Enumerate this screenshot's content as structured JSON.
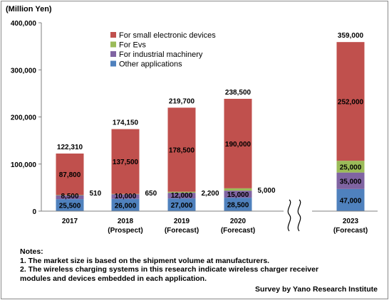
{
  "unit_label": "(Million Yen)",
  "chart_data": {
    "type": "bar",
    "stacked": true,
    "categories": [
      "2017",
      "2018",
      "2019",
      "2020",
      "2023"
    ],
    "category_sublabels": [
      "",
      "(Prospect)",
      "(Forecast)",
      "(Forecast)",
      "(Forecast)"
    ],
    "axis_break_between": [
      "2020",
      "2023"
    ],
    "ylim": [
      0,
      400000
    ],
    "yticks": [
      0,
      100000,
      200000,
      300000,
      400000
    ],
    "ytick_labels": [
      "0",
      "100,000",
      "200,000",
      "300,000",
      "400,000"
    ],
    "legend_position": "top-center",
    "series": [
      {
        "name": "Other applications",
        "color": "#4f81bd",
        "values": [
          25500,
          26000,
          27000,
          28500,
          47000
        ],
        "labels": [
          "25,500",
          "26,000",
          "27,000",
          "28,500",
          "47,000"
        ]
      },
      {
        "name": "For industrial machinery",
        "color": "#8064a2",
        "values": [
          8500,
          10000,
          12000,
          15000,
          35000
        ],
        "labels": [
          "8,500",
          "10,000",
          "12,000",
          "15,000",
          "35,000"
        ]
      },
      {
        "name": "For Evs",
        "color": "#9bbb59",
        "values": [
          510,
          650,
          2200,
          5000,
          25000
        ],
        "labels": [
          "510",
          "650",
          "2,200",
          "5,000",
          "25,000"
        ]
      },
      {
        "name": "For small electronic devices",
        "color": "#c0504d",
        "values": [
          87800,
          137500,
          178500,
          190000,
          252000
        ],
        "labels": [
          "87,800",
          "137,500",
          "178,500",
          "190,000",
          "252,000"
        ]
      }
    ],
    "totals": [
      122310,
      174150,
      219700,
      238500,
      359000
    ],
    "total_labels": [
      "122,310",
      "174,150",
      "219,700",
      "238,500",
      "359,000"
    ],
    "legend_order": [
      "For small electronic devices",
      "For Evs",
      "For industrial machinery",
      "Other applications"
    ]
  },
  "notes": {
    "title": "Notes:",
    "line1": "1. The market size is based on the shipment volume at manufacturers.",
    "line2": "2. The wireless charging systems in this research indicate wireless charger receiver",
    "line3": "modules and devices embedded in each application."
  },
  "source": "Survey by Yano Research Institute"
}
